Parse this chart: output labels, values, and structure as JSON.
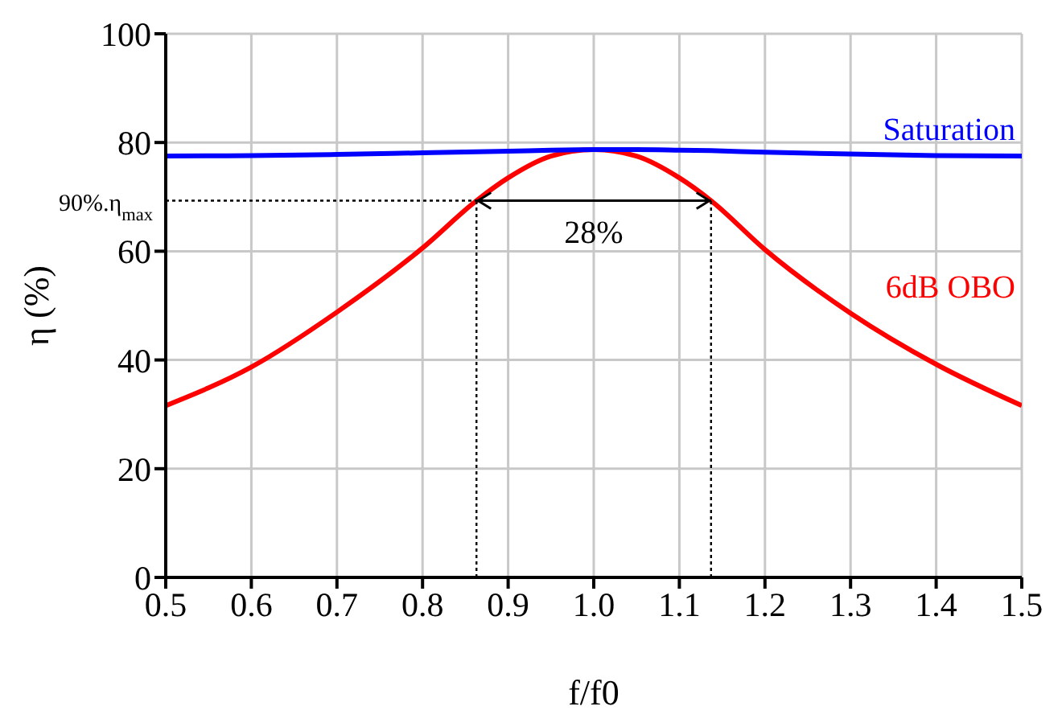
{
  "chart_data": {
    "type": "line",
    "xlabel": "f/f0",
    "ylabel": "η (%)",
    "xlim": [
      0.5,
      1.5
    ],
    "xticks": [
      {
        "value": 0.5,
        "label": "0.5"
      },
      {
        "value": 0.6,
        "label": "0.6"
      },
      {
        "value": 0.7,
        "label": "0.7"
      },
      {
        "value": 0.8,
        "label": "0.8"
      },
      {
        "value": 0.9,
        "label": "0.9"
      },
      {
        "value": 1.0,
        "label": "1.0"
      },
      {
        "value": 1.1,
        "label": "1.1"
      },
      {
        "value": 1.2,
        "label": "1.2"
      },
      {
        "value": 1.3,
        "label": "1.3"
      },
      {
        "value": 1.4,
        "label": "1.4"
      },
      {
        "value": 1.5,
        "label": "1.5"
      }
    ],
    "ylim": [
      0,
      100
    ],
    "yticks": [
      0,
      20,
      40,
      60,
      80,
      100
    ],
    "x": [
      0.5,
      0.6,
      0.7,
      0.8,
      0.863,
      0.9,
      0.95,
      1.0,
      1.05,
      1.1,
      1.137,
      1.2,
      1.3,
      1.4,
      1.5
    ],
    "series": [
      {
        "name": "Saturation",
        "color": "#0000ff",
        "values": [
          77.5,
          77.6,
          77.8,
          78.1,
          78.3,
          78.4,
          78.6,
          78.7,
          78.7,
          78.6,
          78.5,
          78.2,
          77.9,
          77.6,
          77.5
        ]
      },
      {
        "name": "6dB OBO",
        "color": "#ff0000",
        "values": [
          31.6,
          38.7,
          48.8,
          60.6,
          69.3,
          73.5,
          77.5,
          78.7,
          77.5,
          73.5,
          69.3,
          60.3,
          48.6,
          39.2,
          31.6
        ]
      }
    ],
    "ref_lines": [
      {
        "axis": "y",
        "value": 69.3,
        "label": "90%.η$_{max}$",
        "line_style": "dotted",
        "color": "#000000"
      },
      {
        "axis": "x",
        "value": 0.863,
        "line_style": "dotted",
        "color": "#000000"
      },
      {
        "axis": "x",
        "value": 1.137,
        "line_style": "dotted",
        "color": "#000000"
      }
    ],
    "annotations": [
      "28%"
    ],
    "grid": true,
    "marker": "none",
    "line_style": "solid"
  }
}
